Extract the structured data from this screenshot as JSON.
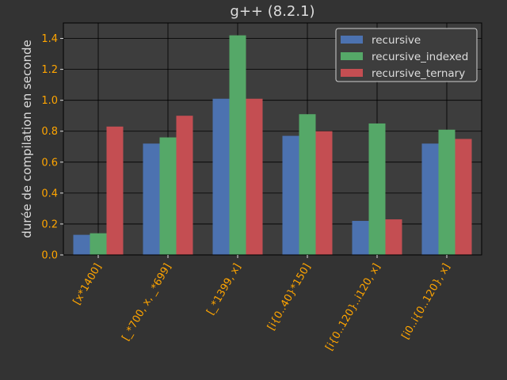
{
  "chart_data": {
    "type": "bar",
    "title": "g++ (8.2.1)",
    "xlabel": "",
    "ylabel": "durée de compilation en seconde",
    "ylim": [
      0,
      1.5
    ],
    "yticks": [
      "0.0",
      "0.2",
      "0.4",
      "0.6",
      "0.8",
      "1.0",
      "1.2",
      "1.4"
    ],
    "grid": true,
    "legend_position": "top-right",
    "categories": [
      "[x*1400]",
      "[_*700, x, _*699]",
      "[_*1399, x]",
      "[i{0..40}*150]",
      "[i{0..120}..i120, x]",
      "[i0..i{0..120}, x]"
    ],
    "series": [
      {
        "name": "recursive",
        "color": "#4c72b0",
        "values": [
          0.13,
          0.72,
          1.01,
          0.77,
          0.22,
          0.72
        ]
      },
      {
        "name": "recursive_indexed",
        "color": "#55a868",
        "values": [
          0.14,
          0.76,
          1.42,
          0.91,
          0.85,
          0.81
        ]
      },
      {
        "name": "recursive_ternary",
        "color": "#c44e52",
        "values": [
          0.83,
          0.9,
          1.01,
          0.8,
          0.23,
          0.75
        ]
      }
    ]
  }
}
